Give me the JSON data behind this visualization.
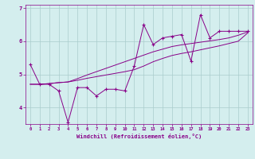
{
  "xlabel": "Windchill (Refroidissement éolien,°C)",
  "x_values": [
    0,
    1,
    2,
    3,
    4,
    5,
    6,
    7,
    8,
    9,
    10,
    11,
    12,
    13,
    14,
    15,
    16,
    17,
    18,
    19,
    20,
    21,
    22,
    23
  ],
  "line1_y": [
    5.3,
    4.7,
    4.7,
    4.5,
    3.55,
    4.6,
    4.6,
    4.35,
    4.55,
    4.55,
    4.5,
    5.25,
    6.5,
    5.9,
    6.1,
    6.15,
    6.2,
    5.4,
    6.8,
    6.1,
    6.3,
    6.3,
    6.3,
    6.3
  ],
  "line2_y": [
    4.7,
    4.7,
    4.72,
    4.75,
    4.77,
    4.82,
    4.88,
    4.93,
    4.98,
    5.03,
    5.08,
    5.14,
    5.25,
    5.38,
    5.48,
    5.57,
    5.63,
    5.68,
    5.74,
    5.8,
    5.86,
    5.93,
    6.0,
    6.25
  ],
  "line3_y": [
    4.7,
    4.7,
    4.72,
    4.75,
    4.77,
    4.87,
    4.98,
    5.08,
    5.18,
    5.28,
    5.38,
    5.48,
    5.58,
    5.68,
    5.76,
    5.84,
    5.89,
    5.93,
    5.97,
    6.01,
    6.05,
    6.1,
    6.18,
    6.28
  ],
  "line_color": "#880088",
  "bg_color": "#d4eeee",
  "grid_color": "#aacccc",
  "ylim": [
    3.5,
    7.1
  ],
  "yticks": [
    4,
    5,
    6,
    7
  ],
  "xlim": [
    -0.5,
    23.5
  ]
}
